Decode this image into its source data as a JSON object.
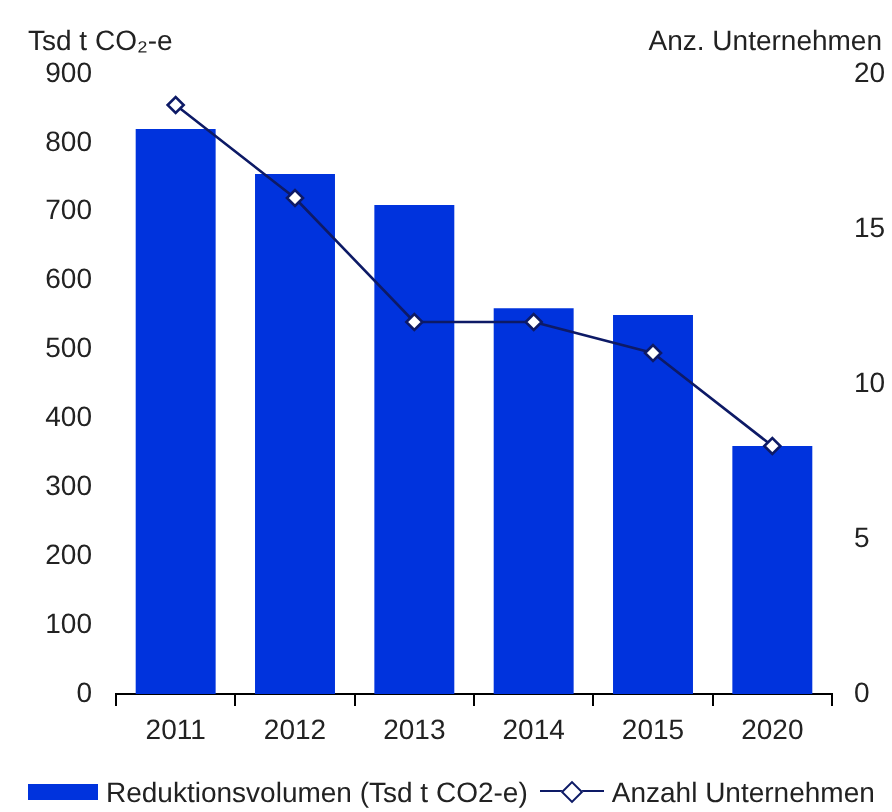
{
  "chart_data": {
    "type": "bar",
    "ylabel": "Tsd t CO₂-e",
    "y2label": "Anz. Unternehmen",
    "categories": [
      "2011",
      "2012",
      "2013",
      "2014",
      "2015",
      "2020"
    ],
    "series": [
      {
        "name": "Reduktionsvolumen (Tsd t CO2-e)",
        "color": "#0033dd",
        "values": [
          820,
          755,
          710,
          560,
          550,
          360
        ]
      },
      {
        "name": "Anzahl Unternehmen",
        "type": "line",
        "axis": "y2",
        "color": "#0d1a66",
        "values": [
          19,
          16,
          12,
          12,
          11,
          8
        ]
      }
    ],
    "ylim": [
      0,
      900
    ],
    "yticks": [
      0,
      100,
      200,
      300,
      400,
      500,
      600,
      700,
      800,
      900
    ],
    "y2lim": [
      0,
      20
    ],
    "y2ticks": [
      0,
      5,
      10,
      15,
      20
    ],
    "marker": "diamond",
    "grid": false,
    "legend": "bottom"
  }
}
